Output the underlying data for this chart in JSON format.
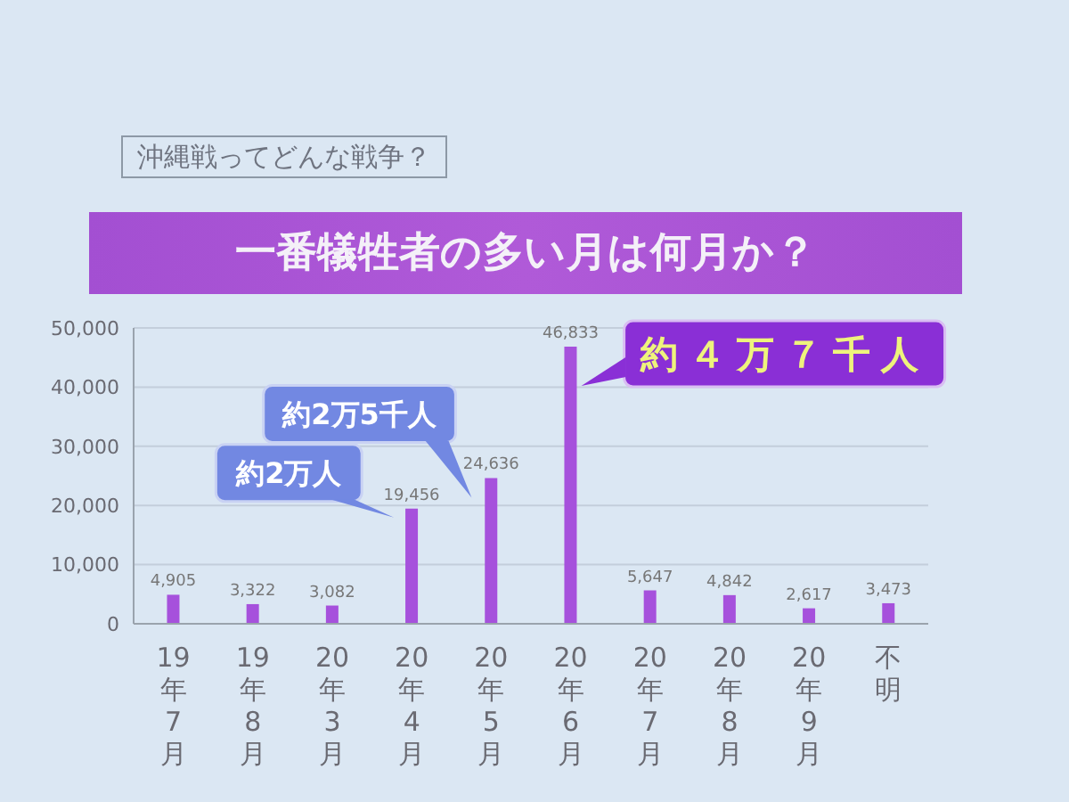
{
  "chart_data": {
    "type": "bar",
    "subtitle": "沖縄戦ってどんな戦争？",
    "title": "一番犠牲者の多い月は何月か？",
    "categories": [
      "19年7月",
      "19年8月",
      "20年3月",
      "20年4月",
      "20年5月",
      "20年6月",
      "20年7月",
      "20年8月",
      "20年9月",
      "不明"
    ],
    "values": [
      4905,
      3322,
      3082,
      19456,
      24636,
      46833,
      5647,
      4842,
      2617,
      3473
    ],
    "value_labels": [
      "4,905",
      "3,322",
      "3,082",
      "19,456",
      "24,636",
      "46,833",
      "5,647",
      "4,842",
      "2,617",
      "3,473"
    ],
    "color": "#a651dc",
    "ylim": [
      0,
      50000
    ],
    "yticks": [
      0,
      {
        "value": 10000,
        "label": "10,000"
      },
      {
        "value": 20000,
        "label": "20,000"
      },
      {
        "value": 30000,
        "label": "30,000"
      },
      {
        "value": 40000,
        "label": "40,000"
      },
      {
        "value": 50000,
        "label": "50,000"
      }
    ],
    "grid": "y",
    "annotations": [
      {
        "text": "約2万人",
        "x": "20年4月",
        "y": 19456
      },
      {
        "text": "約2万5千人",
        "x": "20年5月",
        "y": 24636
      },
      {
        "text": "約４万７千人",
        "x": "20年6月",
        "y": 46833
      }
    ]
  }
}
